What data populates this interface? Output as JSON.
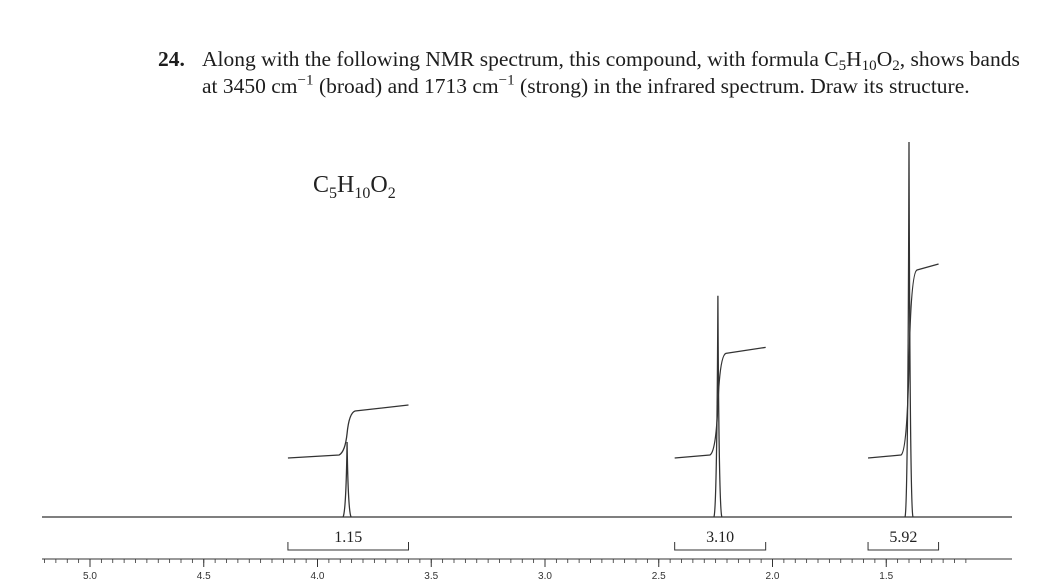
{
  "question": {
    "number": "24.",
    "line1": {
      "text_before": "Along with the following NMR spectrum, this compound, with formula C",
      "sub1": "5",
      "h": "H",
      "sub2": "10",
      "o": "O",
      "sub3": "2",
      "text_after": ", shows bands"
    },
    "line2": {
      "text_a": "at 3450 cm",
      "sup_a": "−1",
      "text_b": " (broad) and 1713 cm",
      "sup_b": "−1",
      "text_c": " (strong) in the infrared spectrum. Draw its structure."
    }
  },
  "chart_data": {
    "type": "line",
    "title": "",
    "formula_label": {
      "c": "C",
      "c_sub": "5",
      "h": "H",
      "h_sub": "10",
      "o": "O",
      "o_sub": "2"
    },
    "xlabel": "",
    "ylabel": "",
    "x_axis": {
      "range": [
        5.2,
        1.15
      ],
      "reversed": true,
      "tick_labels": [
        "5.0",
        "4.5",
        "4.0",
        "3.5",
        "3.0",
        "2.5",
        "2.0",
        "1.5"
      ],
      "tick_values": [
        5.0,
        4.5,
        4.0,
        3.5,
        3.0,
        2.5,
        2.0,
        1.5
      ],
      "minor_step": 0.1
    },
    "peaks": [
      {
        "shift_ppm": 3.87,
        "relative_height": 0.2
      },
      {
        "shift_ppm": 2.24,
        "relative_height": 0.59
      },
      {
        "shift_ppm": 1.4,
        "relative_height": 1.0
      }
    ],
    "integrals": [
      {
        "label": "1.15",
        "start_ppm": 4.13,
        "end_ppm": 3.6
      },
      {
        "label": "3.10",
        "start_ppm": 2.43,
        "end_ppm": 2.03
      },
      {
        "label": "5.92",
        "start_ppm": 1.58,
        "end_ppm": 1.27
      }
    ],
    "grid": false,
    "legend": "none"
  }
}
